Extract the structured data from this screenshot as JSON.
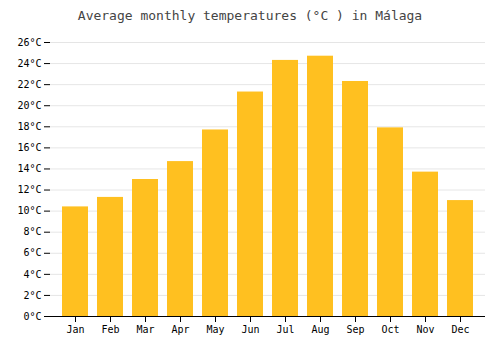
{
  "chart_data": {
    "type": "bar",
    "title": "Average monthly temperatures (°C ) in Málaga",
    "categories": [
      "Jan",
      "Feb",
      "Mar",
      "Apr",
      "May",
      "Jun",
      "Jul",
      "Aug",
      "Sep",
      "Oct",
      "Nov",
      "Dec"
    ],
    "values": [
      10.4,
      11.3,
      13.0,
      14.7,
      17.7,
      21.3,
      24.3,
      24.7,
      22.3,
      17.9,
      13.7,
      11.0
    ],
    "color": "#FFC020",
    "ylim": [
      0,
      26
    ],
    "yticks": [
      {
        "value": 0,
        "label": "0°C"
      },
      {
        "value": 2,
        "label": "2°C"
      },
      {
        "value": 4,
        "label": "4°C"
      },
      {
        "value": 6,
        "label": "6°C"
      },
      {
        "value": 8,
        "label": "8°C"
      },
      {
        "value": 10,
        "label": "10°C"
      },
      {
        "value": 12,
        "label": "12°C"
      },
      {
        "value": 14,
        "label": "14°C"
      },
      {
        "value": 16,
        "label": "16°C"
      },
      {
        "value": 18,
        "label": "18°C"
      },
      {
        "value": 20,
        "label": "20°C"
      },
      {
        "value": 22,
        "label": "22°C"
      },
      {
        "value": 24,
        "label": "24°C"
      },
      {
        "value": 26,
        "label": "26°C"
      }
    ],
    "grid": true
  }
}
